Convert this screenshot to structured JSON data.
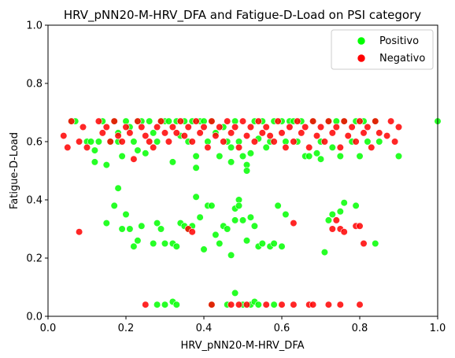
{
  "chart_data": {
    "type": "scatter",
    "title": "HRV_pNN20-M-HRV_DFA and Fatigue-D-Load on PSI category",
    "xlabel": "HRV_pNN20-M-HRV_DFA",
    "ylabel": "Fatigue-D-Load",
    "xlim": [
      0,
      1
    ],
    "ylim": [
      0,
      1
    ],
    "xticks": [
      "0.0",
      "0.2",
      "0.4",
      "0.6",
      "0.8",
      "1.0"
    ],
    "yticks": [
      "0.0",
      "0.2",
      "0.4",
      "0.6",
      "0.8",
      "1.0"
    ],
    "legend_position": "top-right",
    "grid": false,
    "series": [
      {
        "name": "Positivo",
        "color": "#00ff00",
        "points": [
          [
            0.06,
            0.67
          ],
          [
            0.07,
            0.67
          ],
          [
            0.1,
            0.6
          ],
          [
            0.11,
            0.6
          ],
          [
            0.12,
            0.53
          ],
          [
            0.12,
            0.57
          ],
          [
            0.13,
            0.6
          ],
          [
            0.14,
            0.67
          ],
          [
            0.15,
            0.52
          ],
          [
            0.16,
            0.6
          ],
          [
            0.17,
            0.67
          ],
          [
            0.18,
            0.63
          ],
          [
            0.18,
            0.6
          ],
          [
            0.19,
            0.55
          ],
          [
            0.2,
            0.67
          ],
          [
            0.21,
            0.65
          ],
          [
            0.22,
            0.6
          ],
          [
            0.23,
            0.67
          ],
          [
            0.23,
            0.57
          ],
          [
            0.24,
            0.67
          ],
          [
            0.25,
            0.56
          ],
          [
            0.26,
            0.67
          ],
          [
            0.27,
            0.63
          ],
          [
            0.28,
            0.6
          ],
          [
            0.29,
            0.67
          ],
          [
            0.3,
            0.67
          ],
          [
            0.31,
            0.67
          ],
          [
            0.32,
            0.53
          ],
          [
            0.33,
            0.67
          ],
          [
            0.34,
            0.62
          ],
          [
            0.35,
            0.67
          ],
          [
            0.36,
            0.6
          ],
          [
            0.37,
            0.67
          ],
          [
            0.38,
            0.55
          ],
          [
            0.38,
            0.51
          ],
          [
            0.39,
            0.67
          ],
          [
            0.4,
            0.67
          ],
          [
            0.41,
            0.6
          ],
          [
            0.42,
            0.67
          ],
          [
            0.43,
            0.63
          ],
          [
            0.44,
            0.55
          ],
          [
            0.45,
            0.65
          ],
          [
            0.46,
            0.6
          ],
          [
            0.47,
            0.53
          ],
          [
            0.47,
            0.58
          ],
          [
            0.48,
            0.67
          ],
          [
            0.49,
            0.6
          ],
          [
            0.5,
            0.55
          ],
          [
            0.51,
            0.52
          ],
          [
            0.51,
            0.5
          ],
          [
            0.52,
            0.56
          ],
          [
            0.53,
            0.67
          ],
          [
            0.54,
            0.61
          ],
          [
            0.55,
            0.67
          ],
          [
            0.56,
            0.58
          ],
          [
            0.57,
            0.6
          ],
          [
            0.58,
            0.67
          ],
          [
            0.6,
            0.67
          ],
          [
            0.61,
            0.6
          ],
          [
            0.62,
            0.67
          ],
          [
            0.63,
            0.67
          ],
          [
            0.64,
            0.6
          ],
          [
            0.65,
            0.67
          ],
          [
            0.66,
            0.55
          ],
          [
            0.67,
            0.55
          ],
          [
            0.68,
            0.67
          ],
          [
            0.69,
            0.56
          ],
          [
            0.7,
            0.54
          ],
          [
            0.7,
            0.6
          ],
          [
            0.72,
            0.67
          ],
          [
            0.73,
            0.58
          ],
          [
            0.74,
            0.67
          ],
          [
            0.75,
            0.55
          ],
          [
            0.76,
            0.67
          ],
          [
            0.78,
            0.6
          ],
          [
            0.79,
            0.67
          ],
          [
            0.8,
            0.55
          ],
          [
            0.81,
            0.67
          ],
          [
            0.82,
            0.6
          ],
          [
            0.84,
            0.67
          ],
          [
            0.85,
            0.6
          ],
          [
            0.9,
            0.55
          ],
          [
            1.0,
            0.67
          ],
          [
            0.15,
            0.32
          ],
          [
            0.17,
            0.38
          ],
          [
            0.18,
            0.44
          ],
          [
            0.19,
            0.3
          ],
          [
            0.2,
            0.35
          ],
          [
            0.21,
            0.3
          ],
          [
            0.22,
            0.24
          ],
          [
            0.23,
            0.26
          ],
          [
            0.24,
            0.31
          ],
          [
            0.27,
            0.25
          ],
          [
            0.28,
            0.32
          ],
          [
            0.29,
            0.3
          ],
          [
            0.3,
            0.25
          ],
          [
            0.32,
            0.25
          ],
          [
            0.33,
            0.24
          ],
          [
            0.34,
            0.32
          ],
          [
            0.35,
            0.31
          ],
          [
            0.36,
            0.3
          ],
          [
            0.37,
            0.31
          ],
          [
            0.38,
            0.41
          ],
          [
            0.39,
            0.34
          ],
          [
            0.4,
            0.23
          ],
          [
            0.41,
            0.38
          ],
          [
            0.42,
            0.38
          ],
          [
            0.43,
            0.28
          ],
          [
            0.44,
            0.25
          ],
          [
            0.45,
            0.31
          ],
          [
            0.46,
            0.3
          ],
          [
            0.47,
            0.21
          ],
          [
            0.48,
            0.37
          ],
          [
            0.48,
            0.33
          ],
          [
            0.49,
            0.4
          ],
          [
            0.49,
            0.38
          ],
          [
            0.5,
            0.33
          ],
          [
            0.51,
            0.26
          ],
          [
            0.52,
            0.34
          ],
          [
            0.53,
            0.31
          ],
          [
            0.54,
            0.24
          ],
          [
            0.55,
            0.25
          ],
          [
            0.57,
            0.24
          ],
          [
            0.58,
            0.25
          ],
          [
            0.59,
            0.38
          ],
          [
            0.6,
            0.24
          ],
          [
            0.61,
            0.35
          ],
          [
            0.71,
            0.22
          ],
          [
            0.72,
            0.33
          ],
          [
            0.73,
            0.35
          ],
          [
            0.75,
            0.36
          ],
          [
            0.76,
            0.39
          ],
          [
            0.79,
            0.38
          ],
          [
            0.84,
            0.25
          ],
          [
            0.28,
            0.04
          ],
          [
            0.3,
            0.04
          ],
          [
            0.32,
            0.05
          ],
          [
            0.33,
            0.04
          ],
          [
            0.42,
            0.04
          ],
          [
            0.46,
            0.04
          ],
          [
            0.48,
            0.08
          ],
          [
            0.5,
            0.04
          ],
          [
            0.52,
            0.04
          ],
          [
            0.53,
            0.05
          ],
          [
            0.54,
            0.04
          ],
          [
            0.58,
            0.04
          ]
        ]
      },
      {
        "name": "Negativo",
        "color": "#ff0000",
        "points": [
          [
            0.04,
            0.62
          ],
          [
            0.05,
            0.58
          ],
          [
            0.06,
            0.67
          ],
          [
            0.08,
            0.6
          ],
          [
            0.09,
            0.65
          ],
          [
            0.1,
            0.58
          ],
          [
            0.13,
            0.67
          ],
          [
            0.14,
            0.63
          ],
          [
            0.15,
            0.65
          ],
          [
            0.16,
            0.6
          ],
          [
            0.17,
            0.67
          ],
          [
            0.18,
            0.62
          ],
          [
            0.19,
            0.6
          ],
          [
            0.2,
            0.65
          ],
          [
            0.21,
            0.63
          ],
          [
            0.22,
            0.54
          ],
          [
            0.23,
            0.67
          ],
          [
            0.24,
            0.65
          ],
          [
            0.25,
            0.62
          ],
          [
            0.26,
            0.6
          ],
          [
            0.27,
            0.58
          ],
          [
            0.28,
            0.65
          ],
          [
            0.29,
            0.67
          ],
          [
            0.3,
            0.63
          ],
          [
            0.31,
            0.6
          ],
          [
            0.32,
            0.65
          ],
          [
            0.33,
            0.63
          ],
          [
            0.34,
            0.67
          ],
          [
            0.35,
            0.62
          ],
          [
            0.36,
            0.65
          ],
          [
            0.37,
            0.6
          ],
          [
            0.38,
            0.67
          ],
          [
            0.39,
            0.63
          ],
          [
            0.4,
            0.65
          ],
          [
            0.41,
            0.58
          ],
          [
            0.42,
            0.67
          ],
          [
            0.43,
            0.62
          ],
          [
            0.44,
            0.65
          ],
          [
            0.45,
            0.6
          ],
          [
            0.46,
            0.67
          ],
          [
            0.47,
            0.63
          ],
          [
            0.48,
            0.65
          ],
          [
            0.49,
            0.58
          ],
          [
            0.5,
            0.67
          ],
          [
            0.51,
            0.62
          ],
          [
            0.52,
            0.65
          ],
          [
            0.53,
            0.6
          ],
          [
            0.54,
            0.67
          ],
          [
            0.55,
            0.63
          ],
          [
            0.56,
            0.65
          ],
          [
            0.57,
            0.62
          ],
          [
            0.58,
            0.6
          ],
          [
            0.59,
            0.67
          ],
          [
            0.6,
            0.63
          ],
          [
            0.61,
            0.58
          ],
          [
            0.62,
            0.65
          ],
          [
            0.63,
            0.6
          ],
          [
            0.64,
            0.67
          ],
          [
            0.65,
            0.63
          ],
          [
            0.66,
            0.65
          ],
          [
            0.67,
            0.58
          ],
          [
            0.68,
            0.67
          ],
          [
            0.69,
            0.62
          ],
          [
            0.7,
            0.65
          ],
          [
            0.71,
            0.6
          ],
          [
            0.72,
            0.67
          ],
          [
            0.73,
            0.63
          ],
          [
            0.74,
            0.65
          ],
          [
            0.75,
            0.58
          ],
          [
            0.76,
            0.67
          ],
          [
            0.77,
            0.62
          ],
          [
            0.78,
            0.65
          ],
          [
            0.79,
            0.6
          ],
          [
            0.8,
            0.67
          ],
          [
            0.81,
            0.63
          ],
          [
            0.82,
            0.65
          ],
          [
            0.83,
            0.58
          ],
          [
            0.84,
            0.67
          ],
          [
            0.85,
            0.63
          ],
          [
            0.87,
            0.62
          ],
          [
            0.88,
            0.67
          ],
          [
            0.89,
            0.6
          ],
          [
            0.9,
            0.65
          ],
          [
            0.08,
            0.29
          ],
          [
            0.36,
            0.3
          ],
          [
            0.37,
            0.29
          ],
          [
            0.63,
            0.32
          ],
          [
            0.73,
            0.3
          ],
          [
            0.74,
            0.33
          ],
          [
            0.75,
            0.3
          ],
          [
            0.76,
            0.29
          ],
          [
            0.79,
            0.31
          ],
          [
            0.8,
            0.31
          ],
          [
            0.81,
            0.25
          ],
          [
            0.25,
            0.04
          ],
          [
            0.42,
            0.04
          ],
          [
            0.47,
            0.04
          ],
          [
            0.49,
            0.04
          ],
          [
            0.51,
            0.04
          ],
          [
            0.56,
            0.04
          ],
          [
            0.6,
            0.04
          ],
          [
            0.63,
            0.04
          ],
          [
            0.67,
            0.04
          ],
          [
            0.68,
            0.04
          ],
          [
            0.72,
            0.04
          ],
          [
            0.75,
            0.04
          ],
          [
            0.8,
            0.04
          ]
        ]
      }
    ]
  }
}
